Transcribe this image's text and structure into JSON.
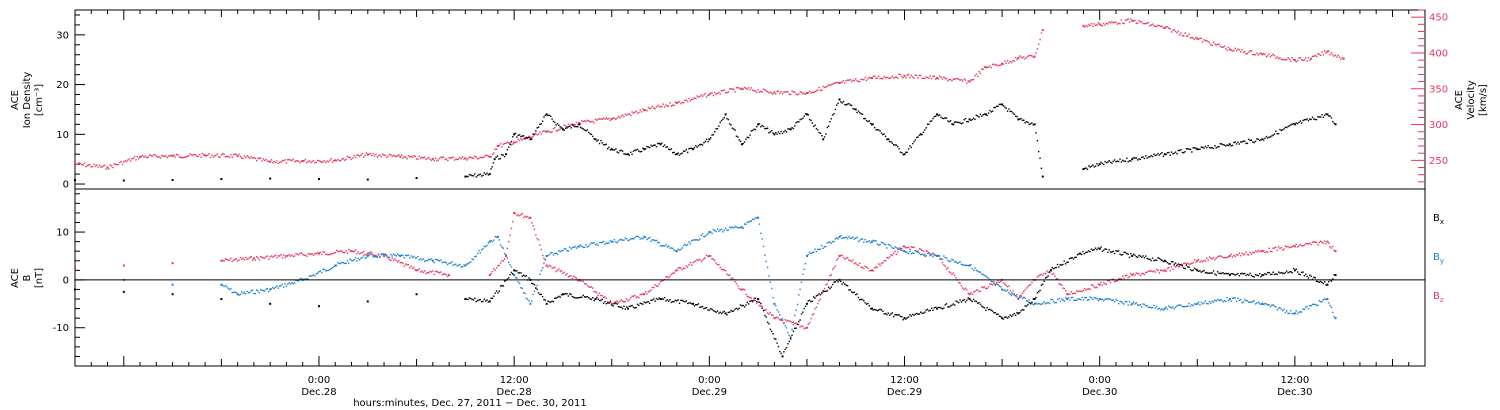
{
  "colors": {
    "axis": "#000000",
    "bx": "#000000",
    "by": "#1a7fd4",
    "bz": "#e8365d",
    "density": "#000000",
    "velocity": "#e8365d"
  },
  "chart_data": [
    {
      "type": "scatter",
      "panel": "top",
      "ylabel_lines": [
        "ACE",
        "Ion Density",
        "[cm⁻³]"
      ],
      "y2label_lines": [
        "ACE",
        "Velocity",
        "[km/s]"
      ],
      "ylim": [
        -1,
        35
      ],
      "y2lim": [
        210,
        460
      ],
      "yticks": [
        "0",
        "10",
        "20",
        "30"
      ],
      "y2ticks": [
        "250",
        "300",
        "350",
        "400",
        "450"
      ],
      "series": [
        {
          "axis": "left",
          "x": [
            -15,
            -12,
            -9,
            -6,
            -3,
            0,
            3,
            6,
            9,
            10.5,
            10.8,
            11.5,
            12,
            13,
            14,
            15,
            16,
            17,
            18,
            19,
            20,
            21,
            22,
            23,
            24,
            25,
            26,
            27,
            28,
            29,
            30,
            31,
            32,
            33,
            34,
            35,
            36,
            37,
            38,
            39,
            40,
            41,
            42,
            43,
            44,
            44.5,
            47,
            48,
            50,
            52,
            54,
            56,
            58,
            60,
            62,
            62.5
          ],
          "y": [
            0.8,
            0.7,
            0.8,
            1.0,
            1.1,
            1.0,
            0.9,
            1.2,
            1.5,
            2.0,
            5.0,
            6.0,
            10.0,
            9.0,
            14.0,
            11.0,
            12.0,
            9.0,
            7.0,
            6.0,
            7.0,
            8.0,
            6.0,
            7.0,
            9.0,
            14.0,
            8.0,
            12.0,
            10.0,
            11.0,
            14.0,
            9.0,
            17.0,
            15.0,
            12.0,
            9.0,
            6.0,
            10.0,
            14.0,
            12.0,
            13.0,
            14.0,
            16.0,
            13.0,
            12.0,
            1.5,
            3.0,
            4.0,
            5.0,
            6.0,
            7.0,
            8.0,
            9.0,
            12.0,
            14.0,
            12.0
          ]
        },
        {
          "axis": "right",
          "x": [
            -15,
            -13,
            -11,
            -9,
            -7,
            -5,
            -3,
            -1,
            1,
            3,
            5,
            7,
            9,
            10.5,
            11,
            12,
            14,
            16,
            18,
            20,
            22,
            24,
            26,
            28,
            30,
            32,
            34,
            36,
            38,
            40,
            41,
            42,
            43,
            44,
            44.5,
            47,
            48,
            50,
            52,
            54,
            56,
            58,
            60,
            61,
            62,
            63
          ],
          "y": [
            245,
            240,
            255,
            256,
            257,
            256,
            248,
            249,
            250,
            258,
            255,
            252,
            253,
            255,
            270,
            275,
            290,
            302,
            308,
            320,
            330,
            342,
            350,
            345,
            344,
            358,
            365,
            368,
            365,
            360,
            380,
            385,
            393,
            395,
            432,
            438,
            440,
            445,
            435,
            420,
            405,
            398,
            390,
            392,
            402,
            392
          ]
        }
      ]
    },
    {
      "type": "scatter",
      "panel": "bottom",
      "ylabel_lines": [
        "ACE",
        "B",
        "[nT]"
      ],
      "ylim": [
        -18,
        19
      ],
      "yticks": [
        "-10",
        "0",
        "10"
      ],
      "xticks": [
        {
          "x": 0,
          "line1": "0:00",
          "line2": "Dec.28"
        },
        {
          "x": 12,
          "line1": "12:00",
          "line2": "Dec.28"
        },
        {
          "x": 24,
          "line1": "0:00",
          "line2": "Dec.29"
        },
        {
          "x": 36,
          "line1": "12:00",
          "line2": "Dec.29"
        },
        {
          "x": 48,
          "line1": "0:00",
          "line2": "Dec.30"
        },
        {
          "x": 60,
          "line1": "12:00",
          "line2": "Dec.30"
        }
      ],
      "xlabel": "hours:minutes, Dec. 27, 2011 − Dec. 30, 2011",
      "xlim": [
        -15,
        68
      ],
      "legend": [
        "B",
        "B",
        "B"
      ],
      "legend_subs": [
        "x",
        "y",
        "z"
      ],
      "series": [
        {
          "name": "Bx",
          "x": [
            -15,
            -12,
            -9,
            -6,
            -3,
            0,
            3,
            6,
            9,
            10.5,
            12,
            13,
            14,
            15,
            17,
            19,
            21,
            23,
            25,
            27,
            28.5,
            30,
            32,
            34,
            36,
            38,
            40,
            42,
            43,
            44,
            45,
            46.8,
            48,
            50,
            52,
            54,
            56,
            58,
            60,
            62,
            62.5
          ],
          "y": [
            -2,
            -2.5,
            -3,
            -4,
            -5,
            -5.5,
            -4.5,
            -3,
            -4,
            -4.5,
            2,
            0,
            -5,
            -3,
            -4,
            -6,
            -4,
            -5,
            -7,
            -4,
            -16,
            -5,
            0,
            -6,
            -8,
            -6,
            -4,
            -8,
            -7,
            -4,
            2,
            5.5,
            6.5,
            5,
            4,
            2,
            1,
            1,
            2,
            -1,
            1
          ]
        },
        {
          "name": "By",
          "x": [
            -15,
            -12,
            -9,
            -6,
            -5,
            -3,
            -1,
            1,
            3,
            5,
            7,
            9,
            10.5,
            11,
            12,
            13,
            14,
            16,
            18,
            20,
            22,
            24,
            26,
            27,
            28,
            29,
            30,
            32,
            34,
            36,
            38,
            40,
            42,
            44,
            46,
            48,
            50,
            52,
            54,
            56,
            58,
            60,
            62,
            62.5
          ],
          "y": [
            0,
            0,
            -1,
            -1,
            -3,
            -2,
            0,
            3,
            5,
            5,
            4,
            3,
            8,
            9,
            1,
            -5,
            5,
            7,
            8,
            9,
            6,
            10,
            11,
            13,
            -5,
            -12,
            5,
            9,
            8,
            6,
            5,
            3,
            -2,
            -5,
            -4,
            -4,
            -5,
            -6,
            -5,
            -4,
            -5,
            -7,
            -4,
            -8
          ]
        },
        {
          "name": "Bz",
          "x": [
            -15,
            -12,
            -9,
            -6,
            -4,
            -2,
            0,
            2,
            3,
            4,
            6,
            8,
            10.5,
            11.5,
            12,
            13,
            14,
            16,
            18,
            20,
            22,
            24,
            26,
            28,
            30,
            32,
            34,
            36,
            38,
            40,
            42,
            43,
            44,
            45,
            46,
            48,
            50,
            52,
            54,
            56,
            58,
            60,
            62,
            62.5
          ],
          "y": [
            2.5,
            3,
            3.5,
            4,
            4.5,
            5,
            5.5,
            6,
            5.5,
            5,
            2,
            1,
            1,
            5,
            14,
            13,
            3,
            0,
            -5,
            -3,
            2,
            5,
            -2,
            -8,
            -10,
            5,
            2,
            7,
            5,
            -3,
            0,
            -4,
            0,
            2,
            -3,
            -1,
            1,
            2,
            4,
            5,
            6,
            7,
            8,
            6
          ]
        }
      ]
    }
  ]
}
